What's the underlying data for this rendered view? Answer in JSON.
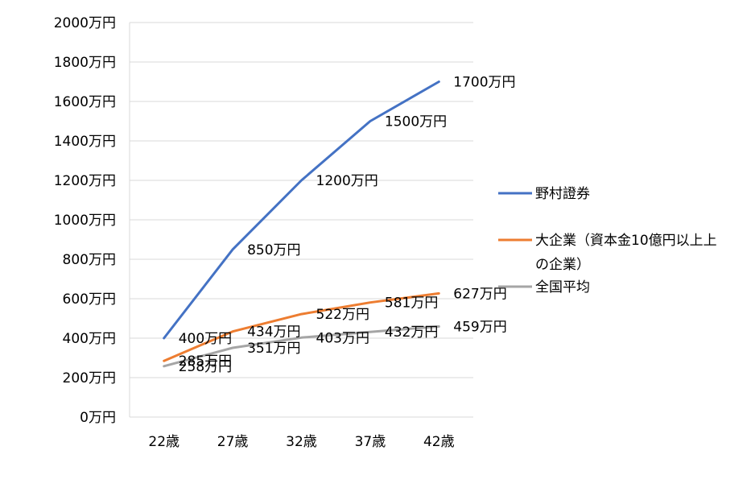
{
  "chart_data": {
    "type": "line",
    "categories": [
      "22歳",
      "27歳",
      "32歳",
      "37歳",
      "42歳"
    ],
    "y_tick_labels": [
      "0万円",
      "200万円",
      "400万円",
      "600万円",
      "800万円",
      "1000万円",
      "1200万円",
      "1400万円",
      "1600万円",
      "1800万円",
      "2000万円"
    ],
    "ylim": [
      0,
      2000
    ],
    "y_step": 200,
    "grid": "horizontal",
    "legend_position": "right",
    "series": [
      {
        "name": "野村證券",
        "color": "#4472C4",
        "values": [
          400,
          850,
          1200,
          1500,
          1700
        ],
        "labels": [
          "400万円",
          "850万円",
          "1200万円",
          "1500万円",
          "1700万円"
        ]
      },
      {
        "name": "大企業（資本金10億円以上の企業）",
        "name_lines": [
          "大企業（資本金10億円以上上",
          "の企業）"
        ],
        "color": "#ED7D31",
        "values": [
          285,
          434,
          522,
          581,
          627
        ],
        "labels": [
          "285万円",
          "434万円",
          "522万円",
          "581万円",
          "627万円"
        ]
      },
      {
        "name": "全国平均",
        "color": "#A5A5A5",
        "values": [
          258,
          351,
          403,
          432,
          459
        ],
        "labels": [
          "258万円",
          "351万円",
          "403万円",
          "432万円",
          "459万円"
        ]
      }
    ]
  }
}
